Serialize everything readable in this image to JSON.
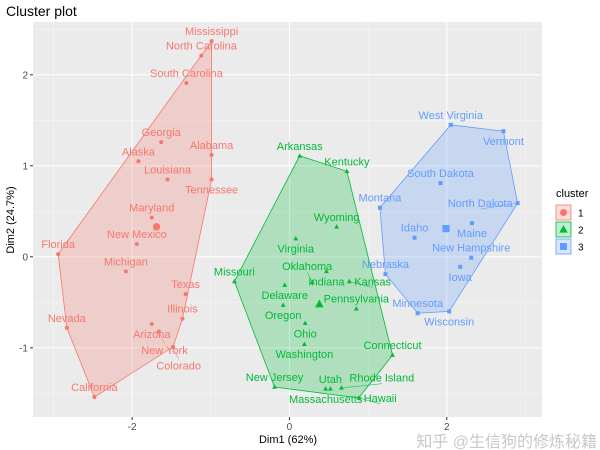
{
  "chart_data": {
    "type": "scatter",
    "title": "Cluster plot",
    "xlabel": "Dim1 (62%)",
    "ylabel": "Dim2 (24.7%)",
    "xlim": [
      -3.26,
      3.21
    ],
    "ylim": [
      -1.76,
      2.58
    ],
    "xticks": [
      -2,
      0,
      2
    ],
    "yticks": [
      -1,
      0,
      1,
      2
    ],
    "grid": true,
    "legend": {
      "title": "cluster",
      "position": "right"
    },
    "series": [
      {
        "name": "1",
        "color": "#F8766D",
        "shape": "circle",
        "centroid": [
          -1.69,
          0.33
        ],
        "points": [
          {
            "label": "Mississippi",
            "x": -0.99,
            "y": 2.37
          },
          {
            "label": "North Carolina",
            "x": -1.12,
            "y": 2.21
          },
          {
            "label": "South Carolina",
            "x": -1.31,
            "y": 1.91
          },
          {
            "label": "Georgia",
            "x": -1.63,
            "y": 1.26
          },
          {
            "label": "Alaska",
            "x": -1.92,
            "y": 1.05
          },
          {
            "label": "Alabama",
            "x": -0.99,
            "y": 1.12
          },
          {
            "label": "Louisiana",
            "x": -1.55,
            "y": 0.85
          },
          {
            "label": "Tennessee",
            "x": -0.99,
            "y": 0.85
          },
          {
            "label": "Maryland",
            "x": -1.75,
            "y": 0.43
          },
          {
            "label": "New Mexico",
            "x": -1.94,
            "y": 0.14
          },
          {
            "label": "Florida",
            "x": -2.94,
            "y": 0.03
          },
          {
            "label": "Michigan",
            "x": -2.08,
            "y": -0.16
          },
          {
            "label": "Texas",
            "x": -1.32,
            "y": -0.41
          },
          {
            "label": "Illinois",
            "x": -1.36,
            "y": -0.68
          },
          {
            "label": "Arizona",
            "x": -1.75,
            "y": -0.74
          },
          {
            "label": "New York",
            "x": -1.66,
            "y": -0.82
          },
          {
            "label": "Nevada",
            "x": -2.83,
            "y": -0.78
          },
          {
            "label": "Colorado",
            "x": -1.48,
            "y": -0.99
          },
          {
            "label": "California",
            "x": -2.48,
            "y": -1.54
          }
        ]
      },
      {
        "name": "2",
        "color": "#00BA38",
        "shape": "triangle",
        "centroid": [
          0.38,
          -0.52
        ],
        "points": [
          {
            "label": "Arkansas",
            "x": 0.13,
            "y": 1.11
          },
          {
            "label": "Kentucky",
            "x": 0.73,
            "y": 0.94
          },
          {
            "label": "Wyoming",
            "x": 0.6,
            "y": 0.33
          },
          {
            "label": "Virginia",
            "x": 0.08,
            "y": 0.2
          },
          {
            "label": "Missouri",
            "x": -0.7,
            "y": -0.27
          },
          {
            "label": "Indiana",
            "x": 0.47,
            "y": -0.16
          },
          {
            "label": "Delaware",
            "x": -0.06,
            "y": -0.31
          },
          {
            "label": "Oklahoma",
            "x": 0.29,
            "y": -0.28
          },
          {
            "label": "Kansas",
            "x": 0.76,
            "y": -0.27
          },
          {
            "label": "Oregon",
            "x": -0.08,
            "y": -0.53
          },
          {
            "label": "Pennsylvania",
            "x": 0.85,
            "y": -0.57
          },
          {
            "label": "Ohio",
            "x": 0.2,
            "y": -0.73
          },
          {
            "label": "Washington",
            "x": 0.19,
            "y": -0.96
          },
          {
            "label": "Connecticut",
            "x": 1.31,
            "y": -1.08
          },
          {
            "label": "New Jersey",
            "x": -0.19,
            "y": -1.43
          },
          {
            "label": "Massachusetts",
            "x": 0.46,
            "y": -1.45
          },
          {
            "label": "Utah",
            "x": 0.52,
            "y": -1.45
          },
          {
            "label": "Rhode Island",
            "x": 0.66,
            "y": -1.44
          },
          {
            "label": "Hawaii",
            "x": 0.88,
            "y": -1.55
          }
        ]
      },
      {
        "name": "3",
        "color": "#619CFF",
        "shape": "square",
        "centroid": [
          1.99,
          0.31
        ],
        "points": [
          {
            "label": "West Virginia",
            "x": 2.05,
            "y": 1.45
          },
          {
            "label": "Vermont",
            "x": 2.72,
            "y": 1.38
          },
          {
            "label": "South Dakota",
            "x": 1.92,
            "y": 0.81
          },
          {
            "label": "Montana",
            "x": 1.15,
            "y": 0.54
          },
          {
            "label": "North Dakota",
            "x": 2.9,
            "y": 0.59
          },
          {
            "label": "Maine",
            "x": 2.32,
            "y": 0.37
          },
          {
            "label": "Idaho",
            "x": 1.59,
            "y": 0.21
          },
          {
            "label": "New Hampshire",
            "x": 2.31,
            "y": -0.01
          },
          {
            "label": "Iowa",
            "x": 2.17,
            "y": -0.11
          },
          {
            "label": "Nebraska",
            "x": 1.22,
            "y": -0.19
          },
          {
            "label": "Minnesota",
            "x": 1.63,
            "y": -0.62
          },
          {
            "label": "Wisconsin",
            "x": 2.03,
            "y": -0.6
          }
        ]
      }
    ]
  },
  "watermark": "知乎 @生信狗的修炼秘籍"
}
